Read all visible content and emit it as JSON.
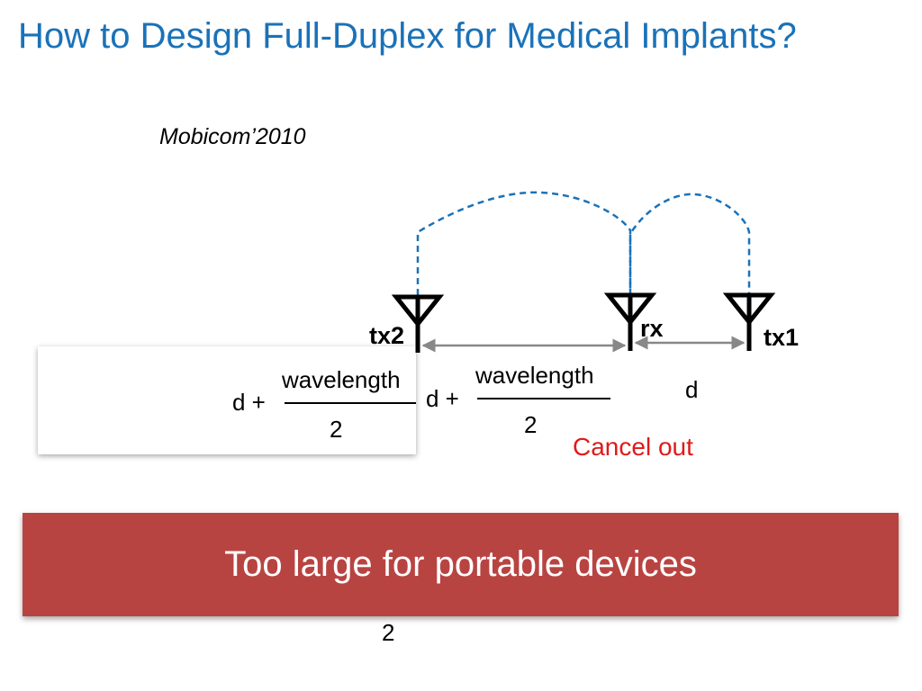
{
  "slide": {
    "title": "How to Design Full-Duplex for Medical Implants?",
    "venue": "Mobicom’2010",
    "antennas": {
      "tx2": "tx2",
      "rx": "rx",
      "tx1": "tx1"
    },
    "distances": {
      "left": {
        "prefix": "d +",
        "numerator": "wavelength",
        "denominator": "2"
      },
      "middle": {
        "prefix": "d +",
        "numerator": "wavelength",
        "denominator": "2"
      },
      "right": "d"
    },
    "cancel_text": "Cancel out",
    "banner_text": "Too large for portable devices",
    "footer_number": "2",
    "colors": {
      "title": "#1a72b8",
      "dashed_paths": "#1a72b8",
      "cancel": "#e01a1a",
      "banner": "#b84442"
    }
  }
}
